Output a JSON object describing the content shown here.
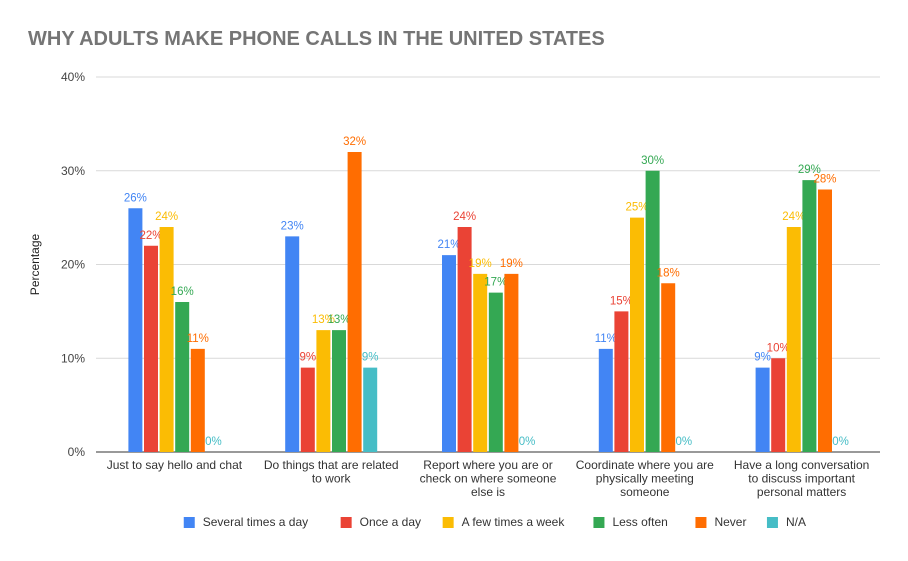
{
  "chart_data": {
    "type": "bar",
    "title": "WHY ADULTS MAKE PHONE CALLS IN THE UNITED STATES",
    "xlabel": "",
    "ylabel": "Percentage",
    "ylim": [
      0,
      40
    ],
    "yticks": [
      "0%",
      "10%",
      "20%",
      "30%",
      "40%"
    ],
    "grid": true,
    "legend_position": "bottom",
    "categories": [
      [
        "Just to say hello and chat"
      ],
      [
        "Do things that are related",
        "to work"
      ],
      [
        "Report where you are or",
        "check on where someone",
        "else is"
      ],
      [
        "Coordinate where you are",
        "physically meeting",
        "someone"
      ],
      [
        "Have a long conversation",
        "to discuss important",
        "personal matters"
      ]
    ],
    "series": [
      {
        "name": "Several times a day",
        "color": "#4285f4",
        "values": [
          26,
          23,
          21,
          11,
          9
        ],
        "labels": [
          "26%",
          "23%",
          "21%",
          "11%",
          "9%"
        ]
      },
      {
        "name": "Once a day",
        "color": "#ea4335",
        "values": [
          22,
          9,
          24,
          15,
          10
        ],
        "labels": [
          "22%",
          "9%",
          "24%",
          "15%",
          "10%"
        ]
      },
      {
        "name": "A few times a week",
        "color": "#fbbc04",
        "values": [
          24,
          13,
          19,
          25,
          24
        ],
        "labels": [
          "24%",
          "13%",
          "19%",
          "25%",
          "24%"
        ]
      },
      {
        "name": "Less often",
        "color": "#34a853",
        "values": [
          16,
          13,
          17,
          30,
          29
        ],
        "labels": [
          "16%",
          "13%",
          "17%",
          "30%",
          "29%"
        ]
      },
      {
        "name": "Never",
        "color": "#ff6d01",
        "values": [
          11,
          32,
          19,
          18,
          28
        ],
        "labels": [
          "11%",
          "32%",
          "19%",
          "18%",
          "28%"
        ]
      },
      {
        "name": "N/A",
        "color": "#46bdc6",
        "values": [
          0,
          9,
          0,
          0,
          0
        ],
        "labels": [
          "0%",
          "9%",
          "0%",
          "0%",
          "0%"
        ]
      }
    ]
  }
}
